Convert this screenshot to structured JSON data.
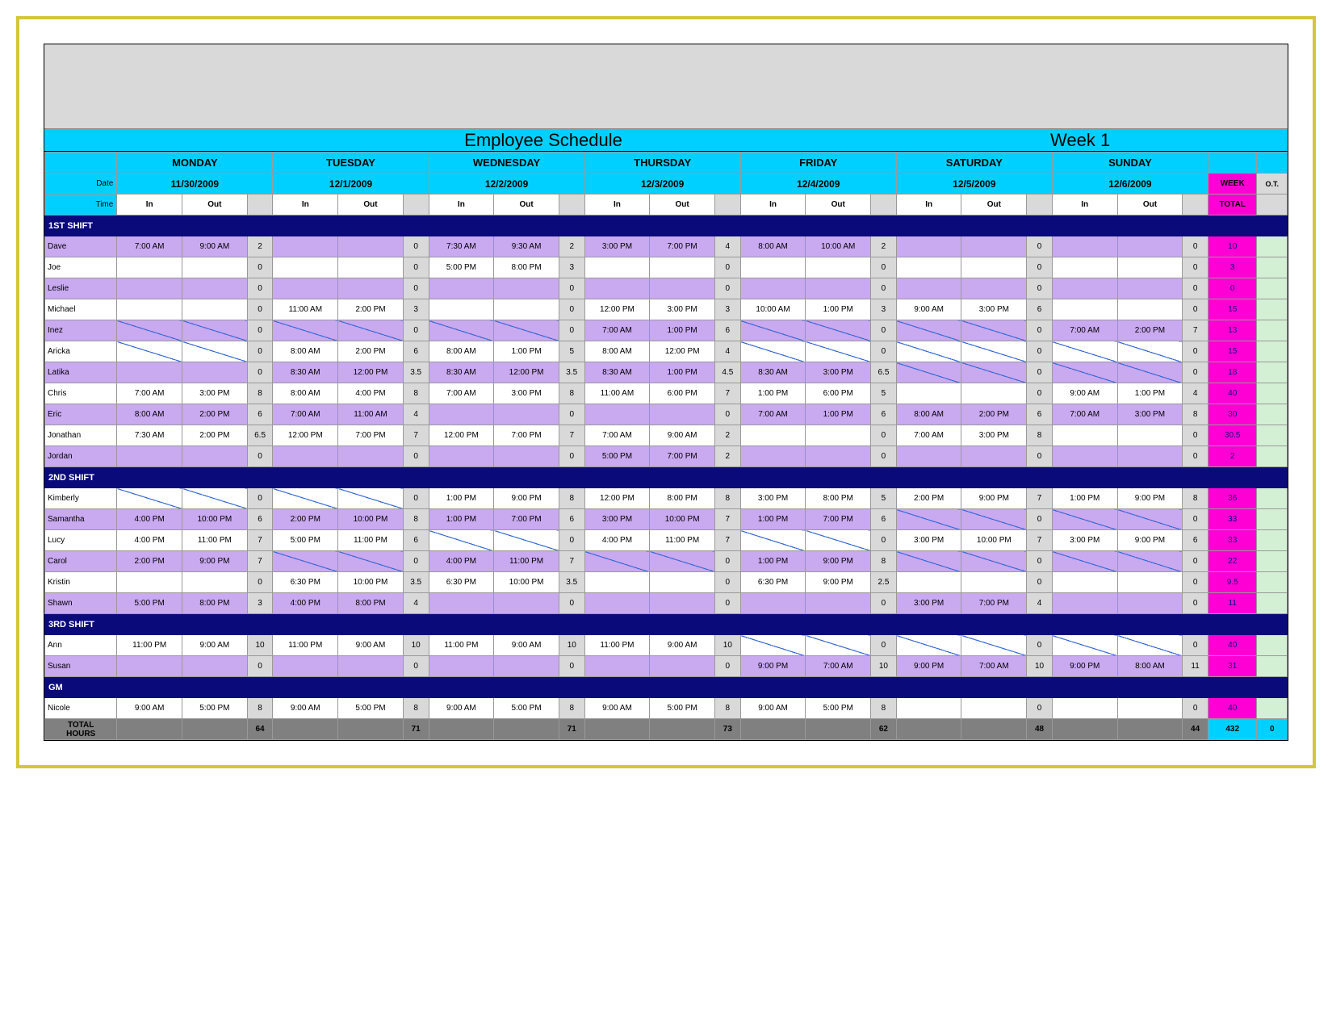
{
  "title": "Employee Schedule",
  "week_label": "Week 1",
  "labels": {
    "date": "Date",
    "time": "Time",
    "in": "In",
    "out": "Out",
    "week": "WEEK",
    "total": "TOTAL",
    "ot": "O.T.",
    "total_hours_1": "TOTAL",
    "total_hours_2": "HOURS"
  },
  "days": [
    {
      "name": "MONDAY",
      "date": "11/30/2009"
    },
    {
      "name": "TUESDAY",
      "date": "12/1/2009"
    },
    {
      "name": "WEDNESDAY",
      "date": "12/2/2009"
    },
    {
      "name": "THURSDAY",
      "date": "12/3/2009"
    },
    {
      "name": "FRIDAY",
      "date": "12/4/2009"
    },
    {
      "name": "SATURDAY",
      "date": "12/5/2009"
    },
    {
      "name": "SUNDAY",
      "date": "12/6/2009"
    }
  ],
  "sections": [
    {
      "label": "1ST SHIFT",
      "rows": [
        {
          "n": "Dave",
          "alt": 0,
          "d": [
            [
              "7:00 AM",
              "9:00 AM",
              "2"
            ],
            [
              "",
              "",
              "0"
            ],
            [
              "7:30 AM",
              "9:30 AM",
              "2"
            ],
            [
              "3:00 PM",
              "7:00 PM",
              "4"
            ],
            [
              "8:00 AM",
              "10:00 AM",
              "2"
            ],
            [
              "",
              "",
              "0"
            ],
            [
              "",
              "",
              "0"
            ]
          ],
          "wk": "10",
          "ot": ""
        },
        {
          "n": "Joe",
          "alt": 1,
          "d": [
            [
              "",
              "",
              "0"
            ],
            [
              "",
              "",
              "0"
            ],
            [
              "5:00 PM",
              "8:00 PM",
              "3"
            ],
            [
              "",
              "",
              "0"
            ],
            [
              "",
              "",
              "0"
            ],
            [
              "",
              "",
              "0"
            ],
            [
              "",
              "",
              "0"
            ]
          ],
          "wk": "3",
          "ot": ""
        },
        {
          "n": "Leslie",
          "alt": 0,
          "d": [
            [
              "",
              "",
              "0"
            ],
            [
              "",
              "",
              "0"
            ],
            [
              "",
              "",
              "0"
            ],
            [
              "",
              "",
              "0"
            ],
            [
              "",
              "",
              "0"
            ],
            [
              "",
              "",
              "0"
            ],
            [
              "",
              "",
              "0"
            ]
          ],
          "wk": "0",
          "ot": ""
        },
        {
          "n": "Michael",
          "alt": 1,
          "d": [
            [
              "",
              "",
              "0"
            ],
            [
              "11:00 AM",
              "2:00 PM",
              "3"
            ],
            [
              "",
              "",
              "0"
            ],
            [
              "12:00 PM",
              "3:00 PM",
              "3"
            ],
            [
              "10:00 AM",
              "1:00 PM",
              "3"
            ],
            [
              "9:00 AM",
              "3:00 PM",
              "6"
            ],
            [
              "",
              "",
              "0"
            ]
          ],
          "wk": "15",
          "ot": ""
        },
        {
          "n": "Inez",
          "alt": 0,
          "d": [
            [
              "/",
              "/",
              "0"
            ],
            [
              "/",
              "/",
              "0"
            ],
            [
              "/",
              "/",
              "0"
            ],
            [
              "7:00 AM",
              "1:00 PM",
              "6"
            ],
            [
              "/",
              "/",
              "0"
            ],
            [
              "/",
              "/",
              "0"
            ],
            [
              "7:00 AM",
              "2:00 PM",
              "7"
            ]
          ],
          "wk": "13",
          "ot": ""
        },
        {
          "n": "Aricka",
          "alt": 1,
          "d": [
            [
              "/",
              "/",
              "0"
            ],
            [
              "8:00 AM",
              "2:00 PM",
              "6"
            ],
            [
              "8:00 AM",
              "1:00 PM",
              "5"
            ],
            [
              "8:00 AM",
              "12:00 PM",
              "4"
            ],
            [
              "/",
              "/",
              "0"
            ],
            [
              "/",
              "/",
              "0"
            ],
            [
              "/",
              "/",
              "0"
            ]
          ],
          "wk": "15",
          "ot": ""
        },
        {
          "n": "Latika",
          "alt": 0,
          "d": [
            [
              "",
              "",
              "0"
            ],
            [
              "8:30 AM",
              "12:00 PM",
              "3.5"
            ],
            [
              "8:30 AM",
              "12:00 PM",
              "3.5"
            ],
            [
              "8:30 AM",
              "1:00 PM",
              "4.5"
            ],
            [
              "8:30 AM",
              "3:00 PM",
              "6.5"
            ],
            [
              "/",
              "/",
              "0"
            ],
            [
              "/",
              "/",
              "0"
            ]
          ],
          "wk": "18",
          "ot": ""
        },
        {
          "n": "Chris",
          "alt": 1,
          "d": [
            [
              "7:00 AM",
              "3:00 PM",
              "8"
            ],
            [
              "8:00 AM",
              "4:00 PM",
              "8"
            ],
            [
              "7:00 AM",
              "3:00 PM",
              "8"
            ],
            [
              "11:00 AM",
              "6:00 PM",
              "7"
            ],
            [
              "1:00 PM",
              "6:00 PM",
              "5"
            ],
            [
              "",
              "",
              "0"
            ],
            [
              "9:00 AM",
              "1:00 PM",
              "4"
            ]
          ],
          "wk": "40",
          "ot": ""
        },
        {
          "n": "Eric",
          "alt": 0,
          "d": [
            [
              "8:00 AM",
              "2:00 PM",
              "6"
            ],
            [
              "7:00 AM",
              "11:00 AM",
              "4"
            ],
            [
              "",
              "",
              "0"
            ],
            [
              "",
              "",
              "0"
            ],
            [
              "7:00 AM",
              "1:00 PM",
              "6"
            ],
            [
              "8:00 AM",
              "2:00 PM",
              "6"
            ],
            [
              "7:00 AM",
              "3:00 PM",
              "8"
            ]
          ],
          "wk": "30",
          "ot": ""
        },
        {
          "n": "Jonathan",
          "alt": 1,
          "d": [
            [
              "7:30 AM",
              "2:00 PM",
              "6.5"
            ],
            [
              "12:00 PM",
              "7:00 PM",
              "7"
            ],
            [
              "12:00 PM",
              "7:00 PM",
              "7"
            ],
            [
              "7:00 AM",
              "9:00 AM",
              "2"
            ],
            [
              "",
              "",
              "0"
            ],
            [
              "7:00 AM",
              "3:00 PM",
              "8"
            ],
            [
              "",
              "",
              "0"
            ]
          ],
          "wk": "30.5",
          "ot": ""
        },
        {
          "n": "Jordan",
          "alt": 0,
          "d": [
            [
              "",
              "",
              "0"
            ],
            [
              "",
              "",
              "0"
            ],
            [
              "",
              "",
              "0"
            ],
            [
              "5:00 PM",
              "7:00 PM",
              "2"
            ],
            [
              "",
              "",
              "0"
            ],
            [
              "",
              "",
              "0"
            ],
            [
              "",
              "",
              "0"
            ]
          ],
          "wk": "2",
          "ot": ""
        }
      ]
    },
    {
      "label": "2ND SHIFT",
      "rows": [
        {
          "n": "Kimberly",
          "alt": 1,
          "d": [
            [
              "/",
              "/",
              "0"
            ],
            [
              "/",
              "/",
              "0"
            ],
            [
              "1:00 PM",
              "9:00 PM",
              "8"
            ],
            [
              "12:00 PM",
              "8:00 PM",
              "8"
            ],
            [
              "3:00 PM",
              "8:00 PM",
              "5"
            ],
            [
              "2:00 PM",
              "9:00 PM",
              "7"
            ],
            [
              "1:00 PM",
              "9:00 PM",
              "8"
            ]
          ],
          "wk": "36",
          "ot": ""
        },
        {
          "n": "Samantha",
          "alt": 0,
          "d": [
            [
              "4:00 PM",
              "10:00 PM",
              "6"
            ],
            [
              "2:00 PM",
              "10:00 PM",
              "8"
            ],
            [
              "1:00 PM",
              "7:00 PM",
              "6"
            ],
            [
              "3:00 PM",
              "10:00 PM",
              "7"
            ],
            [
              "1:00 PM",
              "7:00 PM",
              "6"
            ],
            [
              "/",
              "/",
              "0"
            ],
            [
              "/",
              "/",
              "0"
            ]
          ],
          "wk": "33",
          "ot": ""
        },
        {
          "n": "Lucy",
          "alt": 1,
          "d": [
            [
              "4:00 PM",
              "11:00 PM",
              "7"
            ],
            [
              "5:00 PM",
              "11:00 PM",
              "6"
            ],
            [
              "/",
              "/",
              "0"
            ],
            [
              "4:00 PM",
              "11:00 PM",
              "7"
            ],
            [
              "/",
              "/",
              "0"
            ],
            [
              "3:00 PM",
              "10:00 PM",
              "7"
            ],
            [
              "3:00 PM",
              "9:00 PM",
              "6"
            ]
          ],
          "wk": "33",
          "ot": ""
        },
        {
          "n": "Carol",
          "alt": 0,
          "d": [
            [
              "2:00 PM",
              "9:00 PM",
              "7"
            ],
            [
              "/",
              "/",
              "0"
            ],
            [
              "4:00 PM",
              "11:00 PM",
              "7"
            ],
            [
              "/",
              "/",
              "0"
            ],
            [
              "1:00 PM",
              "9:00 PM",
              "8"
            ],
            [
              "/",
              "/",
              "0"
            ],
            [
              "/",
              "/",
              "0"
            ]
          ],
          "wk": "22",
          "ot": ""
        },
        {
          "n": "Kristin",
          "alt": 1,
          "d": [
            [
              "",
              "",
              "0"
            ],
            [
              "6:30 PM",
              "10:00 PM",
              "3.5"
            ],
            [
              "6:30 PM",
              "10:00 PM",
              "3.5"
            ],
            [
              "",
              "",
              "0"
            ],
            [
              "6:30 PM",
              "9:00 PM",
              "2.5"
            ],
            [
              "",
              "",
              "0"
            ],
            [
              "",
              "",
              "0"
            ]
          ],
          "wk": "9.5",
          "ot": ""
        },
        {
          "n": "Shawn",
          "alt": 0,
          "d": [
            [
              "5:00 PM",
              "8:00 PM",
              "3"
            ],
            [
              "4:00 PM",
              "8:00 PM",
              "4"
            ],
            [
              "",
              "",
              "0"
            ],
            [
              "",
              "",
              "0"
            ],
            [
              "",
              "",
              "0"
            ],
            [
              "3:00 PM",
              "7:00 PM",
              "4"
            ],
            [
              "",
              "",
              "0"
            ]
          ],
          "wk": "11",
          "ot": ""
        }
      ]
    },
    {
      "label": "3RD SHIFT",
      "rows": [
        {
          "n": "Ann",
          "alt": 1,
          "d": [
            [
              "11:00 PM",
              "9:00 AM",
              "10"
            ],
            [
              "11:00 PM",
              "9:00 AM",
              "10"
            ],
            [
              "11:00 PM",
              "9:00 AM",
              "10"
            ],
            [
              "11:00 PM",
              "9:00 AM",
              "10"
            ],
            [
              "/",
              "/",
              "0"
            ],
            [
              "/",
              "/",
              "0"
            ],
            [
              "/",
              "/",
              "0"
            ]
          ],
          "wk": "40",
          "ot": ""
        },
        {
          "n": "Susan",
          "alt": 0,
          "d": [
            [
              "",
              "",
              "0"
            ],
            [
              "",
              "",
              "0"
            ],
            [
              "",
              "",
              "0"
            ],
            [
              "",
              "",
              "0"
            ],
            [
              "9:00 PM",
              "7:00 AM",
              "10"
            ],
            [
              "9:00 PM",
              "7:00 AM",
              "10"
            ],
            [
              "9:00 PM",
              "8:00 AM",
              "11"
            ]
          ],
          "wk": "31",
          "ot": ""
        }
      ]
    },
    {
      "label": "GM",
      "rows": [
        {
          "n": "Nicole",
          "alt": 1,
          "d": [
            [
              "9:00 AM",
              "5:00 PM",
              "8"
            ],
            [
              "9:00 AM",
              "5:00 PM",
              "8"
            ],
            [
              "9:00 AM",
              "5:00 PM",
              "8"
            ],
            [
              "9:00 AM",
              "5:00 PM",
              "8"
            ],
            [
              "9:00 AM",
              "5:00 PM",
              "8"
            ],
            [
              "",
              "",
              "0"
            ],
            [
              "",
              "",
              "0"
            ]
          ],
          "wk": "40",
          "ot": ""
        }
      ]
    }
  ],
  "totals": {
    "days": [
      "64",
      "71",
      "71",
      "73",
      "62",
      "48",
      "44"
    ],
    "wk": "432",
    "ot": "0"
  },
  "colors": {
    "cyan": "#00d0ff",
    "navy": "#0a0a7a",
    "magenta": "#ff00d4",
    "purple": "#c9a9f0",
    "gray": "#d9d9d9",
    "darkgray": "#808080",
    "mint": "#d4f0d4",
    "frame": "#d4c639"
  }
}
